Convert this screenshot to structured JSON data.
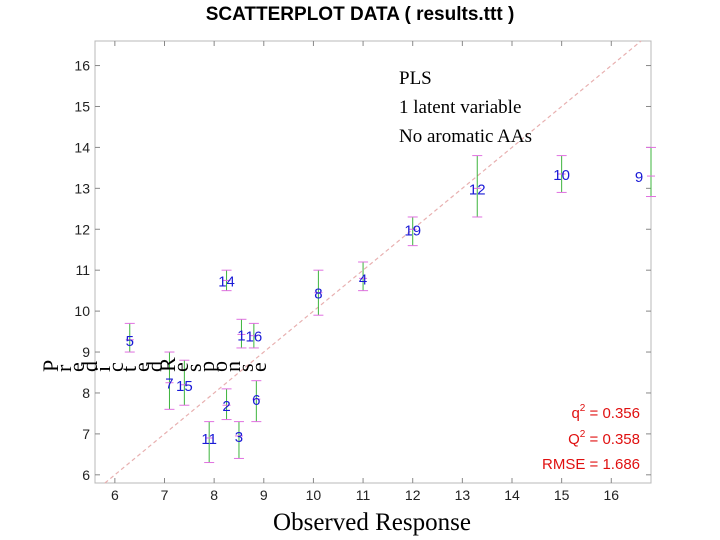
{
  "chart_data": {
    "type": "scatter",
    "title": "SCATTERPLOT DATA ( results.ttt )",
    "xlabel": "Observed Response",
    "ylabel": "Predicted Response",
    "xlim": [
      5.6,
      16.8
    ],
    "ylim": [
      5.8,
      16.6
    ],
    "xticks": [
      6,
      7,
      8,
      9,
      10,
      11,
      12,
      13,
      14,
      15,
      16
    ],
    "yticks": [
      6,
      7,
      8,
      9,
      10,
      11,
      12,
      13,
      14,
      15,
      16
    ],
    "grid": false,
    "reference_line": "identity",
    "annotation": [
      "PLS",
      "1 latent variable",
      "No aromatic AAs"
    ],
    "stats": {
      "q2": "= 0.356",
      "Q2": "= 0.358",
      "rmse": "RMSE = 1.686"
    },
    "colors": {
      "point_label": "#1a1ad6",
      "stats_text": "#e01010",
      "marker": "#e070e0",
      "error_bar": "#3cb43c",
      "identity_line": "#e8b0b0"
    },
    "points": [
      {
        "label": "1",
        "x": 8.55,
        "y": 9.43,
        "ylo": 9.1,
        "yhi": 9.8
      },
      {
        "label": "2",
        "x": 8.25,
        "y": 7.7,
        "ylo": 7.35,
        "yhi": 8.1
      },
      {
        "label": "3",
        "x": 8.5,
        "y": 6.95,
        "ylo": 6.4,
        "yhi": 7.3
      },
      {
        "label": "4",
        "x": 11.0,
        "y": 10.8,
        "ylo": 10.5,
        "yhi": 11.2
      },
      {
        "label": "5",
        "x": 6.3,
        "y": 9.3,
        "ylo": 9.0,
        "yhi": 9.7
      },
      {
        "label": "6",
        "x": 8.85,
        "y": 7.85,
        "ylo": 7.3,
        "yhi": 8.3
      },
      {
        "label": "7",
        "x": 7.1,
        "y": 8.25,
        "ylo": 7.6,
        "yhi": 9.0
      },
      {
        "label": "8",
        "x": 10.1,
        "y": 10.45,
        "ylo": 9.9,
        "yhi": 11.0
      },
      {
        "label": "9",
        "x": 16.8,
        "y": 13.3,
        "ylo": 12.8,
        "yhi": 14.0
      },
      {
        "label": "10",
        "x": 15.0,
        "y": 13.35,
        "ylo": 12.9,
        "yhi": 13.8
      },
      {
        "label": "11",
        "x": 7.9,
        "y": 6.9,
        "ylo": 6.3,
        "yhi": 7.3
      },
      {
        "label": "12",
        "x": 13.3,
        "y": 13.0,
        "ylo": 12.3,
        "yhi": 13.8
      },
      {
        "label": "14",
        "x": 8.25,
        "y": 10.75,
        "ylo": 10.5,
        "yhi": 11.0
      },
      {
        "label": "15",
        "x": 7.4,
        "y": 8.2,
        "ylo": 7.7,
        "yhi": 8.8
      },
      {
        "label": "16",
        "x": 8.8,
        "y": 9.4,
        "ylo": 9.1,
        "yhi": 9.7
      },
      {
        "label": "19",
        "x": 12.0,
        "y": 12.0,
        "ylo": 11.6,
        "yhi": 12.3
      }
    ]
  }
}
